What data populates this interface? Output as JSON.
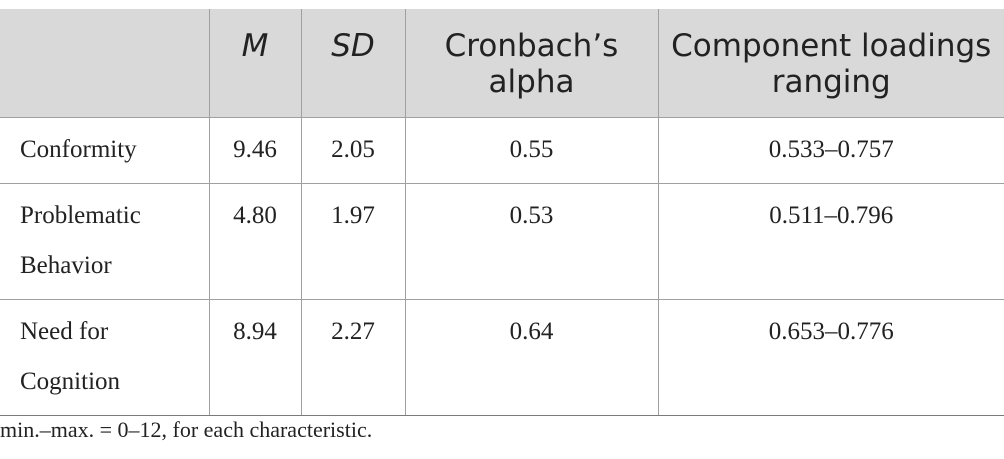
{
  "table": {
    "headers": {
      "label": "",
      "mean": "M",
      "sd": "SD",
      "alpha": "Cronbach’s alpha",
      "loadings": "Component loadings ranging"
    },
    "rows": [
      {
        "label": "Conformity",
        "mean": "9.46",
        "sd": "2.05",
        "alpha": "0.55",
        "loadings": "0.533–0.757"
      },
      {
        "label": "Problematic Behavior",
        "mean": "4.80",
        "sd": "1.97",
        "alpha": "0.53",
        "loadings": "0.511–0.796"
      },
      {
        "label": "Need for Cognition",
        "mean": "8.94",
        "sd": "2.27",
        "alpha": "0.64",
        "loadings": "0.653–0.776"
      }
    ]
  },
  "footnote": "min.–max. = 0–12, for each characteristic."
}
